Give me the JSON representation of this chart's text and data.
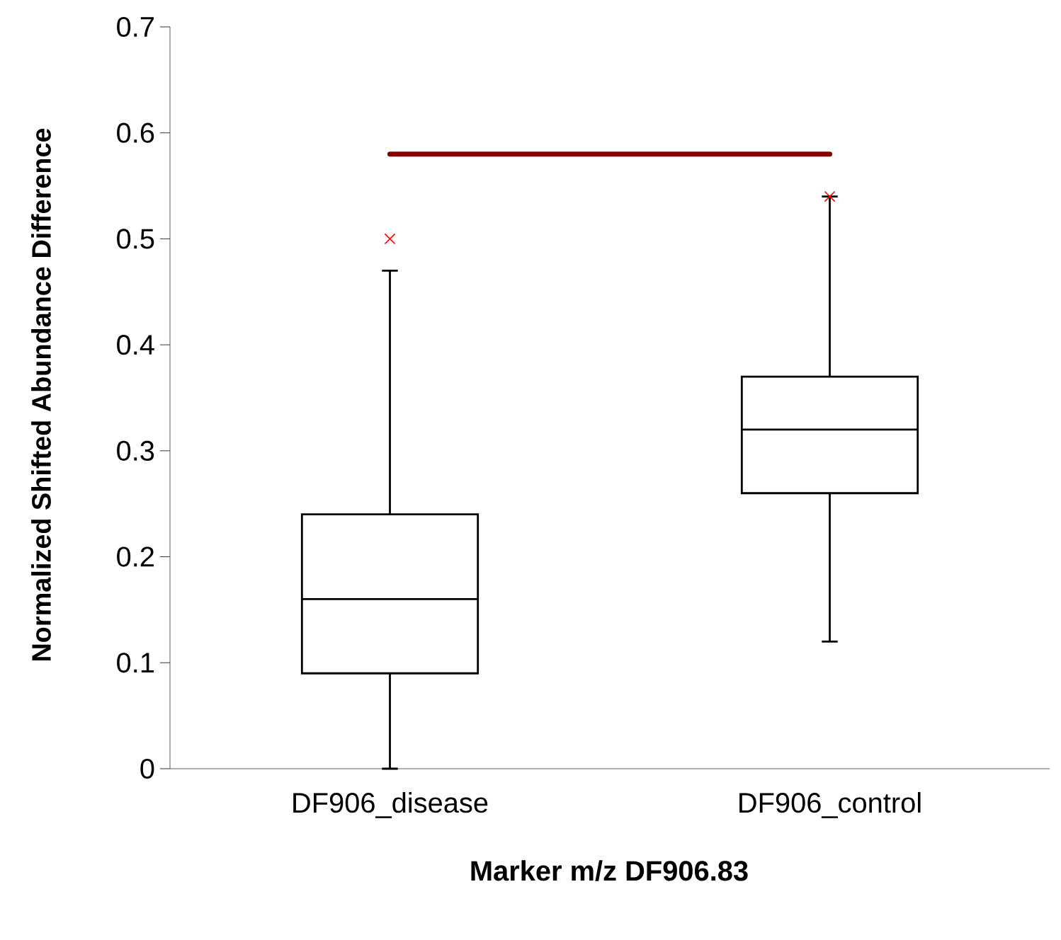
{
  "chart_data": {
    "type": "box",
    "xlabel": "Marker m/z DF906.83",
    "ylabel": "Normalized Shifted Abundance Difference",
    "categories": [
      "DF906_disease",
      "DF906_control"
    ],
    "ylim": [
      0,
      0.7
    ],
    "yticks": [
      0,
      0.1,
      0.2,
      0.3,
      0.4,
      0.5,
      0.6,
      0.7
    ],
    "grid": false,
    "series": [
      {
        "color": "#000000",
        "boxes": [
          {
            "low": 0,
            "q1": 0.09,
            "median": 0.16,
            "q3": 0.24,
            "high": 0.47
          },
          {
            "low": 0.12,
            "q1": 0.26,
            "median": 0.32,
            "q3": 0.37,
            "high": 0.54
          }
        ]
      },
      {
        "type": "scatter",
        "color": "#ff0000",
        "marker": "cross",
        "x": [
          "DF906_disease",
          "DF906_control"
        ],
        "values": [
          0.5,
          0.54
        ]
      },
      {
        "type": "line",
        "color": "#800000",
        "x": [
          "DF906_disease",
          "DF906_control"
        ],
        "values": [
          0.58,
          0.58
        ]
      }
    ]
  }
}
